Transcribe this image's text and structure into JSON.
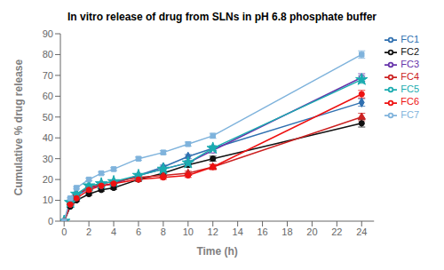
{
  "chart_data": {
    "type": "line",
    "title": "In vitro release of drug from SLNs in pH 6.8 phosphate buffer",
    "xlabel": "Time (h)",
    "ylabel": "Cumulative % drug release",
    "x": [
      0,
      0.5,
      1,
      2,
      3,
      4,
      6,
      8,
      10,
      12,
      24
    ],
    "xlim": [
      -0.3,
      25
    ],
    "ylim": [
      0,
      90
    ],
    "xticks": [
      0,
      2,
      4,
      6,
      8,
      10,
      12,
      14,
      16,
      18,
      20,
      22,
      24
    ],
    "yticks": [
      0,
      10,
      20,
      30,
      40,
      50,
      60,
      70,
      80,
      90
    ],
    "grid": false,
    "legend": "right",
    "series": [
      {
        "name": "FC1",
        "color": "#3070B0",
        "marker": "diamond",
        "values": [
          0,
          8,
          12,
          16,
          17,
          18,
          22,
          26,
          31,
          35,
          57
        ],
        "errors": [
          0,
          0.4,
          0.5,
          0.6,
          0.6,
          0.7,
          0.8,
          0.9,
          1.0,
          1.2,
          1.8
        ]
      },
      {
        "name": "FC2",
        "color": "#111111",
        "marker": "circle",
        "values": [
          0,
          7,
          10,
          13,
          15,
          16,
          20,
          23,
          27,
          30,
          47
        ],
        "errors": [
          0,
          0.4,
          0.5,
          0.6,
          0.6,
          0.7,
          0.8,
          0.9,
          1.0,
          1.2,
          1.8
        ]
      },
      {
        "name": "FC3",
        "color": "#6633AA",
        "marker": "open_circle",
        "values": [
          0,
          8,
          12,
          16,
          17,
          18,
          22,
          25,
          28,
          34,
          69
        ],
        "errors": [
          0,
          0.4,
          0.5,
          0.6,
          0.6,
          0.7,
          0.8,
          0.9,
          1.0,
          1.2,
          1.8
        ]
      },
      {
        "name": "FC4",
        "color": "#CC2222",
        "marker": "triangle",
        "values": [
          0,
          9,
          13,
          16,
          18,
          19,
          21,
          22,
          23,
          26,
          50
        ],
        "errors": [
          0,
          0.4,
          0.5,
          0.6,
          0.6,
          0.7,
          0.8,
          0.9,
          1.0,
          1.2,
          1.8
        ]
      },
      {
        "name": "FC5",
        "color": "#1AACB0",
        "marker": "star",
        "values": [
          0,
          9,
          13,
          17,
          18,
          19,
          22,
          25,
          28,
          35,
          68
        ],
        "errors": [
          0,
          0.4,
          0.5,
          0.6,
          0.6,
          0.7,
          0.8,
          0.9,
          1.0,
          1.2,
          1.8
        ]
      },
      {
        "name": "FC6",
        "color": "#EE1111",
        "marker": "circle",
        "values": [
          0,
          8,
          11,
          15,
          17,
          18,
          20,
          21,
          22,
          26,
          61
        ],
        "errors": [
          0,
          0.4,
          0.5,
          0.6,
          0.6,
          0.7,
          0.8,
          0.9,
          1.0,
          1.2,
          1.8
        ]
      },
      {
        "name": "FC7",
        "color": "#7FB3DC",
        "marker": "square",
        "values": [
          0,
          11,
          16,
          20,
          23,
          25,
          30,
          33,
          37,
          41,
          80
        ],
        "errors": [
          0,
          0.4,
          0.5,
          0.6,
          0.6,
          0.7,
          0.8,
          0.9,
          1.0,
          1.2,
          1.8
        ]
      }
    ]
  }
}
